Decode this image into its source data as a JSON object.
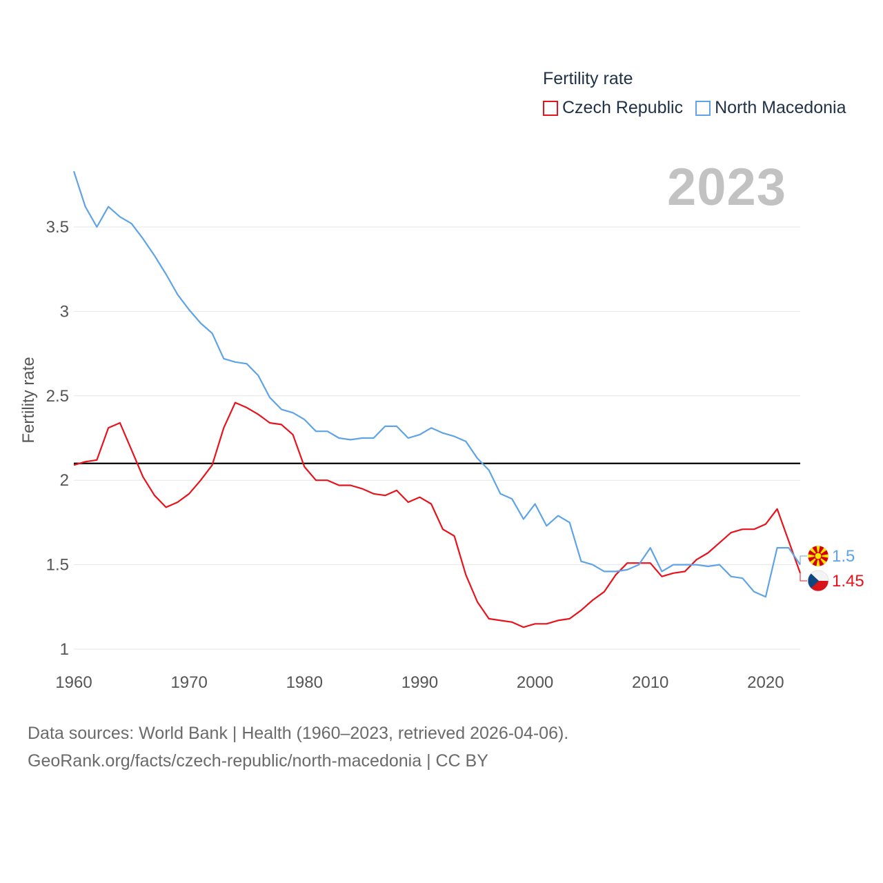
{
  "legend": {
    "title": "Fertility rate",
    "items": [
      {
        "name": "Czech Republic",
        "color": "#e8121b"
      },
      {
        "name": "North Macedonia",
        "color": "#5ea3e6"
      }
    ]
  },
  "year_display": "2023",
  "footer": {
    "line1": "Data sources: World Bank | Health (1960–2023, retrieved 2026-04-06).",
    "line2": "GeoRank.org/facts/czech-republic/north-macedonia | CC BY"
  },
  "chart_data": {
    "type": "line",
    "title": "Fertility rate",
    "xlabel": "",
    "ylabel": "Fertility rate",
    "xlim": [
      1960,
      2023
    ],
    "ylim": [
      1,
      3.9
    ],
    "x_ticks": [
      1960,
      1970,
      1980,
      1990,
      2000,
      2010,
      2020
    ],
    "y_ticks": [
      1,
      1.5,
      2,
      2.5,
      3,
      3.5
    ],
    "y_tick_labels": [
      "1",
      "1.5",
      "2",
      "2.5",
      "3",
      "3.5"
    ],
    "reference_line": {
      "y": 2.1,
      "color": "#000000"
    },
    "x": [
      1960,
      1961,
      1962,
      1963,
      1964,
      1965,
      1966,
      1967,
      1968,
      1969,
      1970,
      1971,
      1972,
      1973,
      1974,
      1975,
      1976,
      1977,
      1978,
      1979,
      1980,
      1981,
      1982,
      1983,
      1984,
      1985,
      1986,
      1987,
      1988,
      1989,
      1990,
      1991,
      1992,
      1993,
      1994,
      1995,
      1996,
      1997,
      1998,
      1999,
      2000,
      2001,
      2002,
      2003,
      2004,
      2005,
      2006,
      2007,
      2008,
      2009,
      2010,
      2011,
      2012,
      2013,
      2014,
      2015,
      2016,
      2017,
      2018,
      2019,
      2020,
      2021,
      2022,
      2023
    ],
    "series": [
      {
        "name": "Czech Republic",
        "color": "#e8121b",
        "end_label": "1.45",
        "flag": "cz",
        "values": [
          2.09,
          2.11,
          2.12,
          2.31,
          2.34,
          2.18,
          2.02,
          1.91,
          1.84,
          1.87,
          1.92,
          2.0,
          2.09,
          2.31,
          2.46,
          2.43,
          2.39,
          2.34,
          2.33,
          2.27,
          2.08,
          2.0,
          2.0,
          1.97,
          1.97,
          1.95,
          1.92,
          1.91,
          1.94,
          1.87,
          1.9,
          1.86,
          1.71,
          1.67,
          1.44,
          1.28,
          1.18,
          1.17,
          1.16,
          1.13,
          1.15,
          1.15,
          1.17,
          1.18,
          1.23,
          1.29,
          1.34,
          1.44,
          1.51,
          1.51,
          1.51,
          1.43,
          1.45,
          1.46,
          1.53,
          1.57,
          1.63,
          1.69,
          1.71,
          1.71,
          1.74,
          1.83,
          1.64,
          1.45
        ]
      },
      {
        "name": "North Macedonia",
        "color": "#5ea3e6",
        "end_label": "1.5",
        "flag": "mk",
        "values": [
          3.83,
          3.62,
          3.5,
          3.62,
          3.56,
          3.52,
          3.43,
          3.33,
          3.22,
          3.1,
          3.01,
          2.93,
          2.87,
          2.72,
          2.7,
          2.69,
          2.62,
          2.49,
          2.42,
          2.4,
          2.36,
          2.29,
          2.29,
          2.25,
          2.24,
          2.25,
          2.25,
          2.32,
          2.32,
          2.25,
          2.27,
          2.31,
          2.28,
          2.26,
          2.23,
          2.13,
          2.06,
          1.92,
          1.89,
          1.77,
          1.86,
          1.73,
          1.79,
          1.75,
          1.52,
          1.5,
          1.46,
          1.46,
          1.47,
          1.5,
          1.6,
          1.46,
          1.5,
          1.5,
          1.5,
          1.49,
          1.5,
          1.43,
          1.42,
          1.34,
          1.31,
          1.6,
          1.6,
          1.5
        ]
      }
    ]
  }
}
